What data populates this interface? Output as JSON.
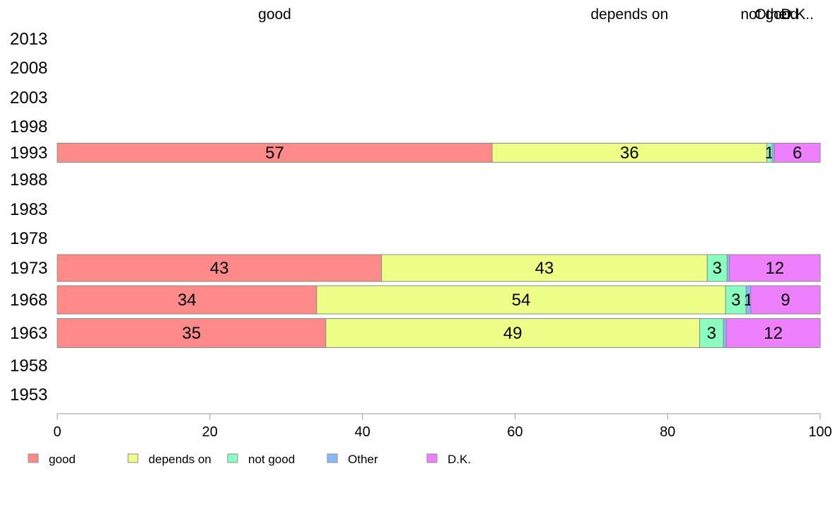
{
  "chart_data": {
    "type": "bar",
    "orientation": "horizontal",
    "stacked": true,
    "categories": [
      "2013",
      "2008",
      "2003",
      "1998",
      "1993",
      "1988",
      "1983",
      "1978",
      "1973",
      "1968",
      "1963",
      "1958",
      "1953"
    ],
    "series": [
      {
        "name": "good",
        "color": "#ff8a8a",
        "values": [
          null,
          null,
          null,
          null,
          57,
          null,
          null,
          null,
          42.5,
          34,
          35.2,
          null,
          null
        ]
      },
      {
        "name": "depends on",
        "color": "#eeff88",
        "values": [
          null,
          null,
          null,
          null,
          36,
          null,
          null,
          null,
          42.7,
          53.6,
          49,
          null,
          null
        ]
      },
      {
        "name": "not good",
        "color": "#8affc0",
        "values": [
          null,
          null,
          null,
          null,
          0.7,
          null,
          null,
          null,
          2.6,
          2.7,
          3.1,
          null,
          null
        ]
      },
      {
        "name": "Other",
        "color": "#8ab8ff",
        "values": [
          null,
          null,
          null,
          null,
          0.3,
          null,
          null,
          null,
          0.3,
          0.6,
          0.4,
          null,
          null
        ]
      },
      {
        "name": "D.K.",
        "color": "#ee80ff",
        "values": [
          null,
          null,
          null,
          null,
          6,
          null,
          null,
          null,
          11.9,
          9.1,
          12.3,
          null,
          null
        ]
      }
    ],
    "data_labels": [
      [
        null,
        null,
        null,
        null,
        "57",
        null,
        null,
        null,
        "43",
        "34",
        "35",
        null,
        null
      ],
      [
        null,
        null,
        null,
        null,
        "36",
        null,
        null,
        null,
        "43",
        "54",
        "49",
        null,
        null
      ],
      [
        null,
        null,
        null,
        null,
        "1",
        null,
        null,
        null,
        "3",
        "3",
        "3",
        null,
        null
      ],
      [
        null,
        null,
        null,
        null,
        "",
        null,
        null,
        null,
        "",
        "1",
        "",
        null,
        null
      ],
      [
        null,
        null,
        null,
        null,
        "6",
        null,
        null,
        null,
        "12",
        "9",
        "12",
        null,
        null
      ]
    ],
    "top_labels": [
      "good",
      "depends on",
      "not good",
      "Other",
      "D.K.."
    ],
    "xlim": [
      0,
      100
    ],
    "xticks": [
      0,
      20,
      40,
      60,
      80,
      100
    ],
    "grid": false,
    "legend_position": "bottom"
  }
}
